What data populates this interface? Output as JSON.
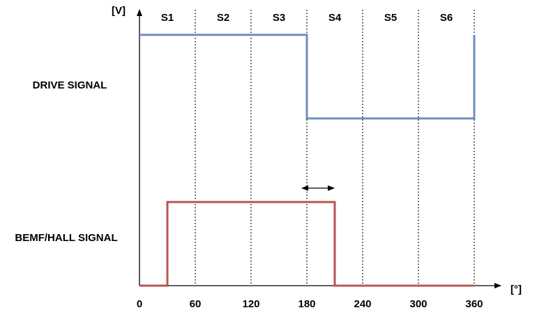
{
  "chart_data": {
    "type": "line",
    "step": true,
    "x_unit_label": "[°]",
    "y_unit_label": "[V]",
    "x_ticks": [
      0,
      60,
      120,
      180,
      240,
      300,
      360
    ],
    "xlim": [
      0,
      360
    ],
    "sectors": [
      {
        "label": "S1",
        "from": 0,
        "to": 60
      },
      {
        "label": "S2",
        "from": 60,
        "to": 120
      },
      {
        "label": "S3",
        "from": 120,
        "to": 180
      },
      {
        "label": "S4",
        "from": 180,
        "to": 240
      },
      {
        "label": "S5",
        "from": 240,
        "to": 300
      },
      {
        "label": "S6",
        "from": 300,
        "to": 360
      }
    ],
    "series": [
      {
        "name": "DRIVE SIGNAL",
        "color": "#6c8ebf",
        "points": [
          [
            0,
            1
          ],
          [
            180,
            1
          ],
          [
            180,
            0
          ],
          [
            360,
            0
          ],
          [
            360,
            1
          ]
        ]
      },
      {
        "name": "BEMF/HALL SIGNAL",
        "color": "#b85450",
        "points": [
          [
            0,
            0
          ],
          [
            30,
            0
          ],
          [
            30,
            1
          ],
          [
            210,
            1
          ],
          [
            210,
            0
          ],
          [
            360,
            0
          ]
        ]
      }
    ],
    "annotations": [
      {
        "type": "double-arrow",
        "from_x": 180,
        "to_x": 210
      }
    ]
  }
}
